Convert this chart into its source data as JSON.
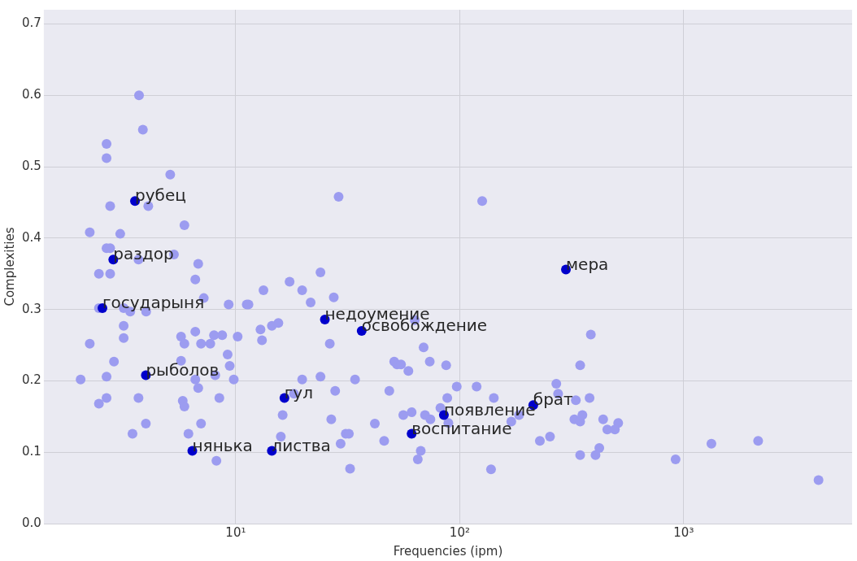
{
  "chart_data": {
    "type": "scatter",
    "xlabel": "Frequencies (ipm)",
    "ylabel": "Complexities",
    "log": "x",
    "grid": true,
    "marker": "circle",
    "legend": false,
    "xlim": [
      1.39,
      5650
    ],
    "ylim": [
      0,
      0.72
    ],
    "xticks": [
      {
        "value": 10,
        "label": "10¹"
      },
      {
        "value": 100,
        "label": "10²"
      },
      {
        "value": 1000,
        "label": "10³"
      }
    ],
    "yticks": [
      {
        "value": 0,
        "label": "0.0"
      },
      0.1,
      0.2,
      0.3,
      0.4,
      0.5,
      0.6,
      0.7
    ],
    "series": [
      {
        "color": "#9c9cf0",
        "x": [
          3.7,
          3.85,
          2.65,
          2.65,
          5.1,
          4.07,
          2.75,
          5.9,
          2.23,
          3.05,
          2.65,
          2.75,
          3.68,
          5.3,
          6.8,
          2.45,
          2.75,
          6.6,
          2.45,
          3.16,
          3.38,
          3.98,
          7.2,
          9.3,
          11.2,
          3.16,
          3.16,
          2.23,
          5.7,
          6.6,
          8.0,
          8.7,
          10.2,
          5.9,
          7.0,
          7.7,
          9.2,
          2.86,
          5.7,
          9.4,
          2.03,
          2.65,
          6.6,
          8.1,
          9.8,
          6.8,
          2.65,
          2.45,
          3.68,
          5.8,
          5.9,
          8.45,
          3.97,
          7.0,
          3.46,
          6.15,
          8.2,
          28.8,
          23.9,
          17.4,
          13.3,
          19.8,
          27.4,
          21.6,
          11.4,
          15.5,
          14.5,
          12.9,
          13.1,
          26.3,
          63,
          69,
          51,
          52.5,
          54.7,
          73.5,
          59,
          87,
          19.8,
          23.9,
          34.1,
          48.5,
          27.8,
          97,
          18.2,
          88,
          16.2,
          26.7,
          56,
          61,
          70,
          74,
          82,
          89,
          41.8,
          31,
          32,
          46,
          15.9,
          29.4,
          67,
          65,
          32.4,
          126,
          385,
          345,
          119,
          142,
          270,
          275,
          330,
          380,
          184,
          170,
          325,
          345,
          353,
          437,
          510,
          456,
          493,
          228,
          253,
          420,
          345,
          404,
          138,
          920,
          1330,
          2150,
          4000
        ],
        "values": [
          0.6,
          0.552,
          0.532,
          0.512,
          0.489,
          0.445,
          0.445,
          0.418,
          0.408,
          0.406,
          0.386,
          0.386,
          0.37,
          0.377,
          0.364,
          0.35,
          0.35,
          0.342,
          0.302,
          0.302,
          0.297,
          0.297,
          0.316,
          0.307,
          0.307,
          0.277,
          0.26,
          0.252,
          0.262,
          0.269,
          0.264,
          0.264,
          0.262,
          0.252,
          0.252,
          0.252,
          0.237,
          0.227,
          0.228,
          0.221,
          0.202,
          0.206,
          0.202,
          0.208,
          0.202,
          0.19,
          0.176,
          0.168,
          0.176,
          0.172,
          0.164,
          0.176,
          0.14,
          0.14,
          0.126,
          0.126,
          0.088,
          0.458,
          0.352,
          0.339,
          0.327,
          0.327,
          0.317,
          0.31,
          0.307,
          0.281,
          0.277,
          0.272,
          0.257,
          0.252,
          0.285,
          0.247,
          0.227,
          0.223,
          0.223,
          0.227,
          0.214,
          0.222,
          0.202,
          0.206,
          0.202,
          0.186,
          0.186,
          0.192,
          0.182,
          0.176,
          0.152,
          0.146,
          0.152,
          0.156,
          0.152,
          0.146,
          0.162,
          0.141,
          0.14,
          0.126,
          0.126,
          0.116,
          0.122,
          0.112,
          0.102,
          0.09,
          0.077,
          0.452,
          0.265,
          0.222,
          0.192,
          0.176,
          0.196,
          0.182,
          0.173,
          0.176,
          0.152,
          0.143,
          0.146,
          0.143,
          0.152,
          0.146,
          0.141,
          0.132,
          0.132,
          0.116,
          0.122,
          0.106,
          0.096,
          0.096,
          0.076,
          0.09,
          0.112,
          0.116,
          0.061
        ]
      },
      {
        "color": "#0000cc",
        "x": [
          3.55,
          2.84,
          2.54,
          3.97,
          6.4,
          14.5,
          16.5,
          25,
          36.5,
          61,
          85,
          213,
          298
        ],
        "values": [
          0.452,
          0.37,
          0.302,
          0.208,
          0.102,
          0.102,
          0.176,
          0.286,
          0.27,
          0.126,
          0.152,
          0.166,
          0.356
        ]
      }
    ],
    "annotations": [
      {
        "text": "рубец",
        "x": 3.55,
        "y": 0.452
      },
      {
        "text": "раздор",
        "x": 2.84,
        "y": 0.37
      },
      {
        "text": "государыня",
        "x": 2.54,
        "y": 0.302
      },
      {
        "text": "рыболов",
        "x": 3.97,
        "y": 0.208
      },
      {
        "text": "нянька",
        "x": 6.4,
        "y": 0.102
      },
      {
        "text": "листва",
        "x": 14.5,
        "y": 0.102
      },
      {
        "text": "гул",
        "x": 16.5,
        "y": 0.176
      },
      {
        "text": "недоумение",
        "x": 25,
        "y": 0.286
      },
      {
        "text": "освобождение",
        "x": 36.5,
        "y": 0.27
      },
      {
        "text": "воспитание",
        "x": 61,
        "y": 0.126
      },
      {
        "text": "появление",
        "x": 85,
        "y": 0.152
      },
      {
        "text": "брат",
        "x": 213,
        "y": 0.166
      },
      {
        "text": "мера",
        "x": 298,
        "y": 0.356
      }
    ]
  }
}
